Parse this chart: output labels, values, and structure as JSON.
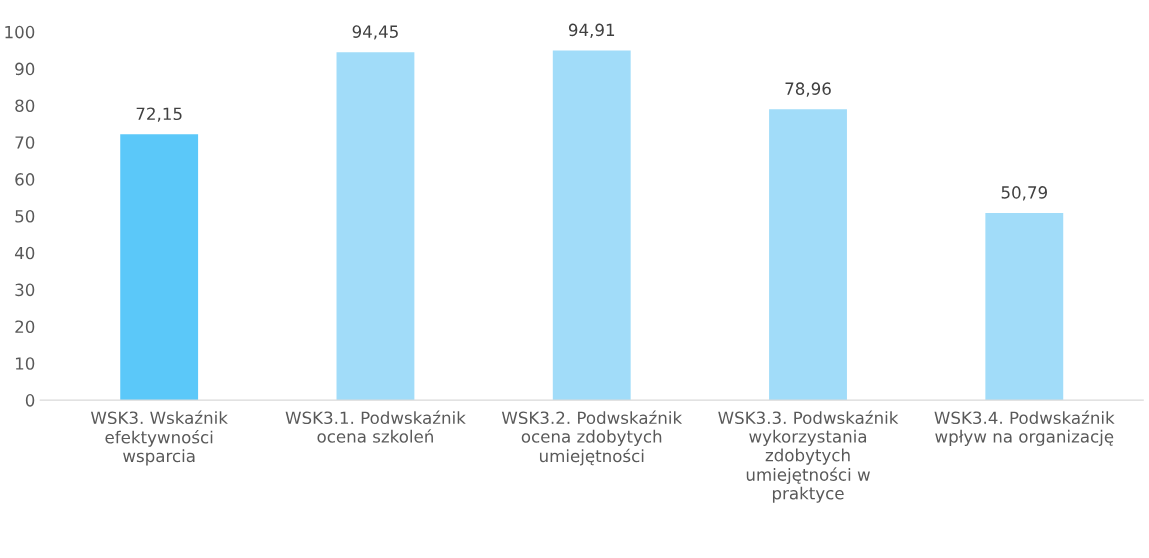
{
  "chart_data": {
    "type": "bar",
    "categories": [
      "WSK3. Wskaźnik\nefektywności\nwsparcia",
      "WSK3.1. Podwskaźnik\nocena szkoleń",
      "WSK3.2. Podwskaźnik\nocena zdobytych\numiejętności",
      "WSK3.3. Podwskaźnik\nwykorzystania\nzdobytych\numiejętności w\npraktyce",
      "WSK3.4. Podwskaźnik\nwpływ na organizację"
    ],
    "values": [
      72.15,
      94.45,
      94.91,
      78.96,
      50.79
    ],
    "colors": [
      "#5bc8f9",
      "#a1dcf9",
      "#a1dcf9",
      "#a1dcf9",
      "#a1dcf9"
    ],
    "value_labels": [
      "72,15",
      "94,45",
      "94,91",
      "78,96",
      "50,79"
    ],
    "ylim": [
      0,
      100
    ],
    "yticks": [
      0,
      10,
      20,
      30,
      40,
      50,
      60,
      70,
      80,
      90,
      100
    ],
    "grid": false,
    "legend": false
  }
}
